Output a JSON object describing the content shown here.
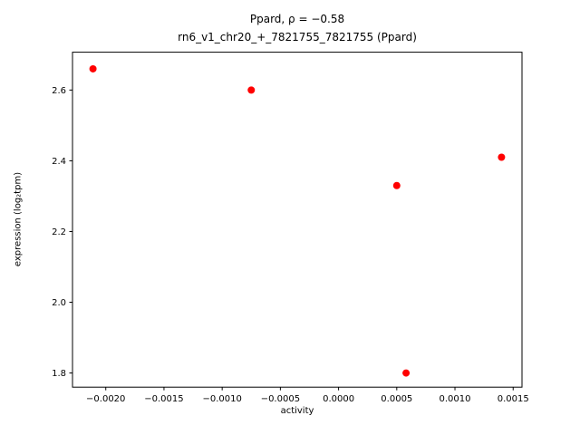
{
  "figure": {
    "title_line1": "Ppard, ρ = −0.58",
    "title_line2": "rn6_v1_chr20_+_7821755_7821755 (Ppard)",
    "xlabel": "activity",
    "ylabel": "expression (log₂tpm)"
  },
  "chart_data": {
    "type": "scatter",
    "title": "Ppard, ρ = −0.58",
    "subtitle": "rn6_v1_chr20_+_7821755_7821755 (Ppard)",
    "xlabel": "activity",
    "ylabel": "expression (log2 tpm)",
    "marker_color": "#ff0000",
    "marker_radius": 4,
    "points": [
      {
        "x": -0.00211,
        "y": 2.66
      },
      {
        "x": -0.00075,
        "y": 2.6
      },
      {
        "x": 0.0005,
        "y": 2.33
      },
      {
        "x": 0.00058,
        "y": 1.8
      },
      {
        "x": 0.0014,
        "y": 2.41
      }
    ],
    "xlim": [
      -0.002286,
      0.001576
    ],
    "ylim": [
      1.76,
      2.707
    ],
    "xticks": [
      -0.002,
      -0.0015,
      -0.001,
      -0.0005,
      0.0,
      0.0005,
      0.001,
      0.0015
    ],
    "xtick_labels": [
      "−0.0020",
      "−0.0015",
      "−0.0010",
      "−0.0005",
      "0.0000",
      "0.0005",
      "0.0010",
      "0.0015"
    ],
    "yticks": [
      1.8,
      2.0,
      2.2,
      2.4,
      2.6
    ],
    "ytick_labels": [
      "1.8",
      "2.0",
      "2.2",
      "2.4",
      "2.6"
    ],
    "grid": false,
    "legend": null
  }
}
